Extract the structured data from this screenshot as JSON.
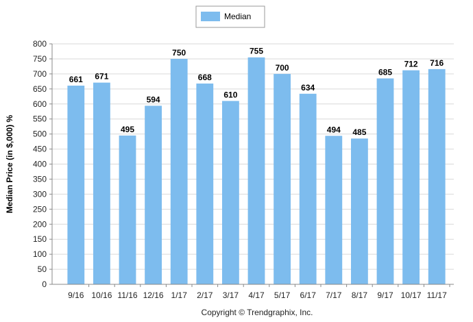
{
  "chart_data": {
    "type": "bar",
    "categories": [
      "9/16",
      "10/16",
      "11/16",
      "12/16",
      "1/17",
      "2/17",
      "3/17",
      "4/17",
      "5/17",
      "6/17",
      "7/17",
      "8/17",
      "9/17",
      "10/17",
      "11/17"
    ],
    "series": [
      {
        "name": "Median",
        "values": [
          661,
          671,
          495,
          594,
          750,
          668,
          610,
          755,
          700,
          634,
          494,
          485,
          685,
          712,
          716
        ]
      }
    ],
    "ylabel": "Median Price (in $,000) %",
    "xlabel": "",
    "ylim": [
      0,
      800
    ],
    "y_ticks": [
      "0",
      "50",
      "100",
      "150",
      "200",
      "250",
      "300",
      "350",
      "400",
      "450",
      "500",
      "550",
      "600",
      "650",
      "700",
      "750",
      "800"
    ],
    "grid": true,
    "legend_position": "top-center",
    "bar_color": "#7dbcee"
  },
  "footer": {
    "copyright": "Copyright © Trendgraphix, Inc."
  }
}
